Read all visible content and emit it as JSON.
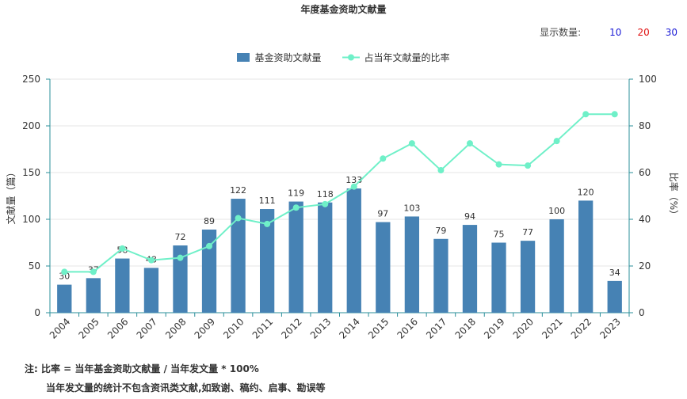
{
  "title": "年度基金资助文献量",
  "display_count": {
    "label": "显示数量:",
    "options": [
      {
        "label": "10",
        "color": "#1a1ad6"
      },
      {
        "label": "20",
        "color": "#e01010"
      },
      {
        "label": "30",
        "color": "#1a1ad6"
      }
    ]
  },
  "colors": {
    "bar": "#4682b4",
    "line": "#6ff0c8",
    "axis": "#2a8f9a",
    "grid": "#e6e6e6",
    "text": "#333333"
  },
  "chart_data": {
    "type": "bar",
    "title": "年度基金资助文献量",
    "categories": [
      "2004",
      "2005",
      "2006",
      "2007",
      "2008",
      "2009",
      "2010",
      "2011",
      "2012",
      "2013",
      "2014",
      "2015",
      "2016",
      "2017",
      "2018",
      "2019",
      "2020",
      "2021",
      "2022",
      "2023"
    ],
    "series": [
      {
        "name": "基金资助文献量",
        "type": "bar",
        "axis": "left",
        "values": [
          30,
          37,
          58,
          48,
          72,
          89,
          122,
          111,
          119,
          118,
          133,
          97,
          103,
          79,
          94,
          75,
          77,
          100,
          120,
          34
        ]
      },
      {
        "name": "占当年文献量的比率",
        "type": "line",
        "axis": "right",
        "values": [
          17.5,
          17.5,
          27.5,
          22.5,
          23.5,
          28.5,
          40.5,
          38,
          45,
          46.5,
          54,
          66,
          72.5,
          61,
          72.5,
          63.5,
          63,
          73.5,
          85,
          85
        ]
      }
    ],
    "ylabel": "文献量（篇）",
    "y2label": "比率（%）",
    "ylim": [
      0,
      250
    ],
    "y2lim": [
      0,
      100
    ],
    "yticks": [
      "0",
      "50",
      "100",
      "150",
      "200",
      "250"
    ],
    "y2ticks": [
      "0",
      "20",
      "40",
      "60",
      "80",
      "100"
    ],
    "grid": true,
    "legend": "top-center"
  },
  "notes": [
    "注:  比率 = 当年基金资助文献量 / 当年发文量 * 100%",
    "当年发文量的统计不包含资讯类文献,如致谢、稿约、启事、勘误等"
  ]
}
